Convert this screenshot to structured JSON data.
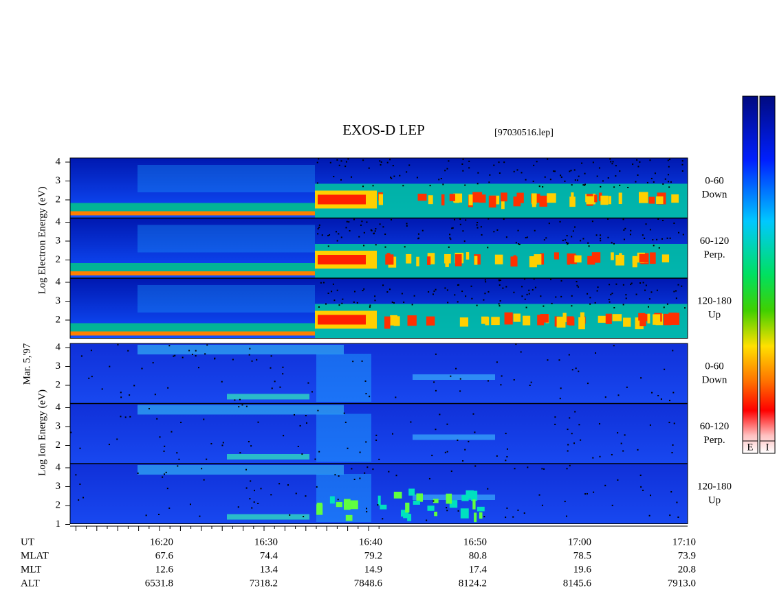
{
  "header": {
    "title": "EXOS-D LEP",
    "file": "[97030516.lep]"
  },
  "date": "Mar. 5,'97",
  "electron_axis": "Log Electron Energy (eV)",
  "ion_axis": "Log Ion Energy (eV)",
  "panels": [
    {
      "species": "electron",
      "pitch": "0-60",
      "direction": "Down",
      "ticks": [
        "4",
        "3",
        "2"
      ]
    },
    {
      "species": "electron",
      "pitch": "60-120",
      "direction": "Perp.",
      "ticks": [
        "4",
        "3",
        "2"
      ]
    },
    {
      "species": "electron",
      "pitch": "120-180",
      "direction": "Up",
      "ticks": [
        "4",
        "3",
        "2"
      ]
    },
    {
      "species": "ion",
      "pitch": "0-60",
      "direction": "Down",
      "ticks": [
        "4",
        "3",
        "2"
      ]
    },
    {
      "species": "ion",
      "pitch": "60-120",
      "direction": "Perp.",
      "ticks": [
        "4",
        "3",
        "2"
      ]
    },
    {
      "species": "ion",
      "pitch": "120-180",
      "direction": "Up",
      "ticks": [
        "4",
        "3",
        "2",
        "1"
      ]
    }
  ],
  "time_axis": {
    "rows": [
      {
        "label": "UT",
        "values": [
          "16:20",
          "16:30",
          "16:40",
          "16:50",
          "17:00",
          "17:10"
        ]
      },
      {
        "label": "MLAT",
        "values": [
          "67.6",
          "74.4",
          "79.2",
          "80.8",
          "78.5",
          "73.9"
        ]
      },
      {
        "label": "MLT",
        "values": [
          "12.6",
          "13.4",
          "14.9",
          "17.4",
          "19.6",
          "20.8"
        ]
      },
      {
        "label": "ALT",
        "values": [
          "6531.8",
          "7318.2",
          "7848.6",
          "8124.2",
          "8145.6",
          "7913.0"
        ]
      }
    ]
  },
  "colorbar": {
    "labels": [
      "E",
      "I"
    ]
  }
}
